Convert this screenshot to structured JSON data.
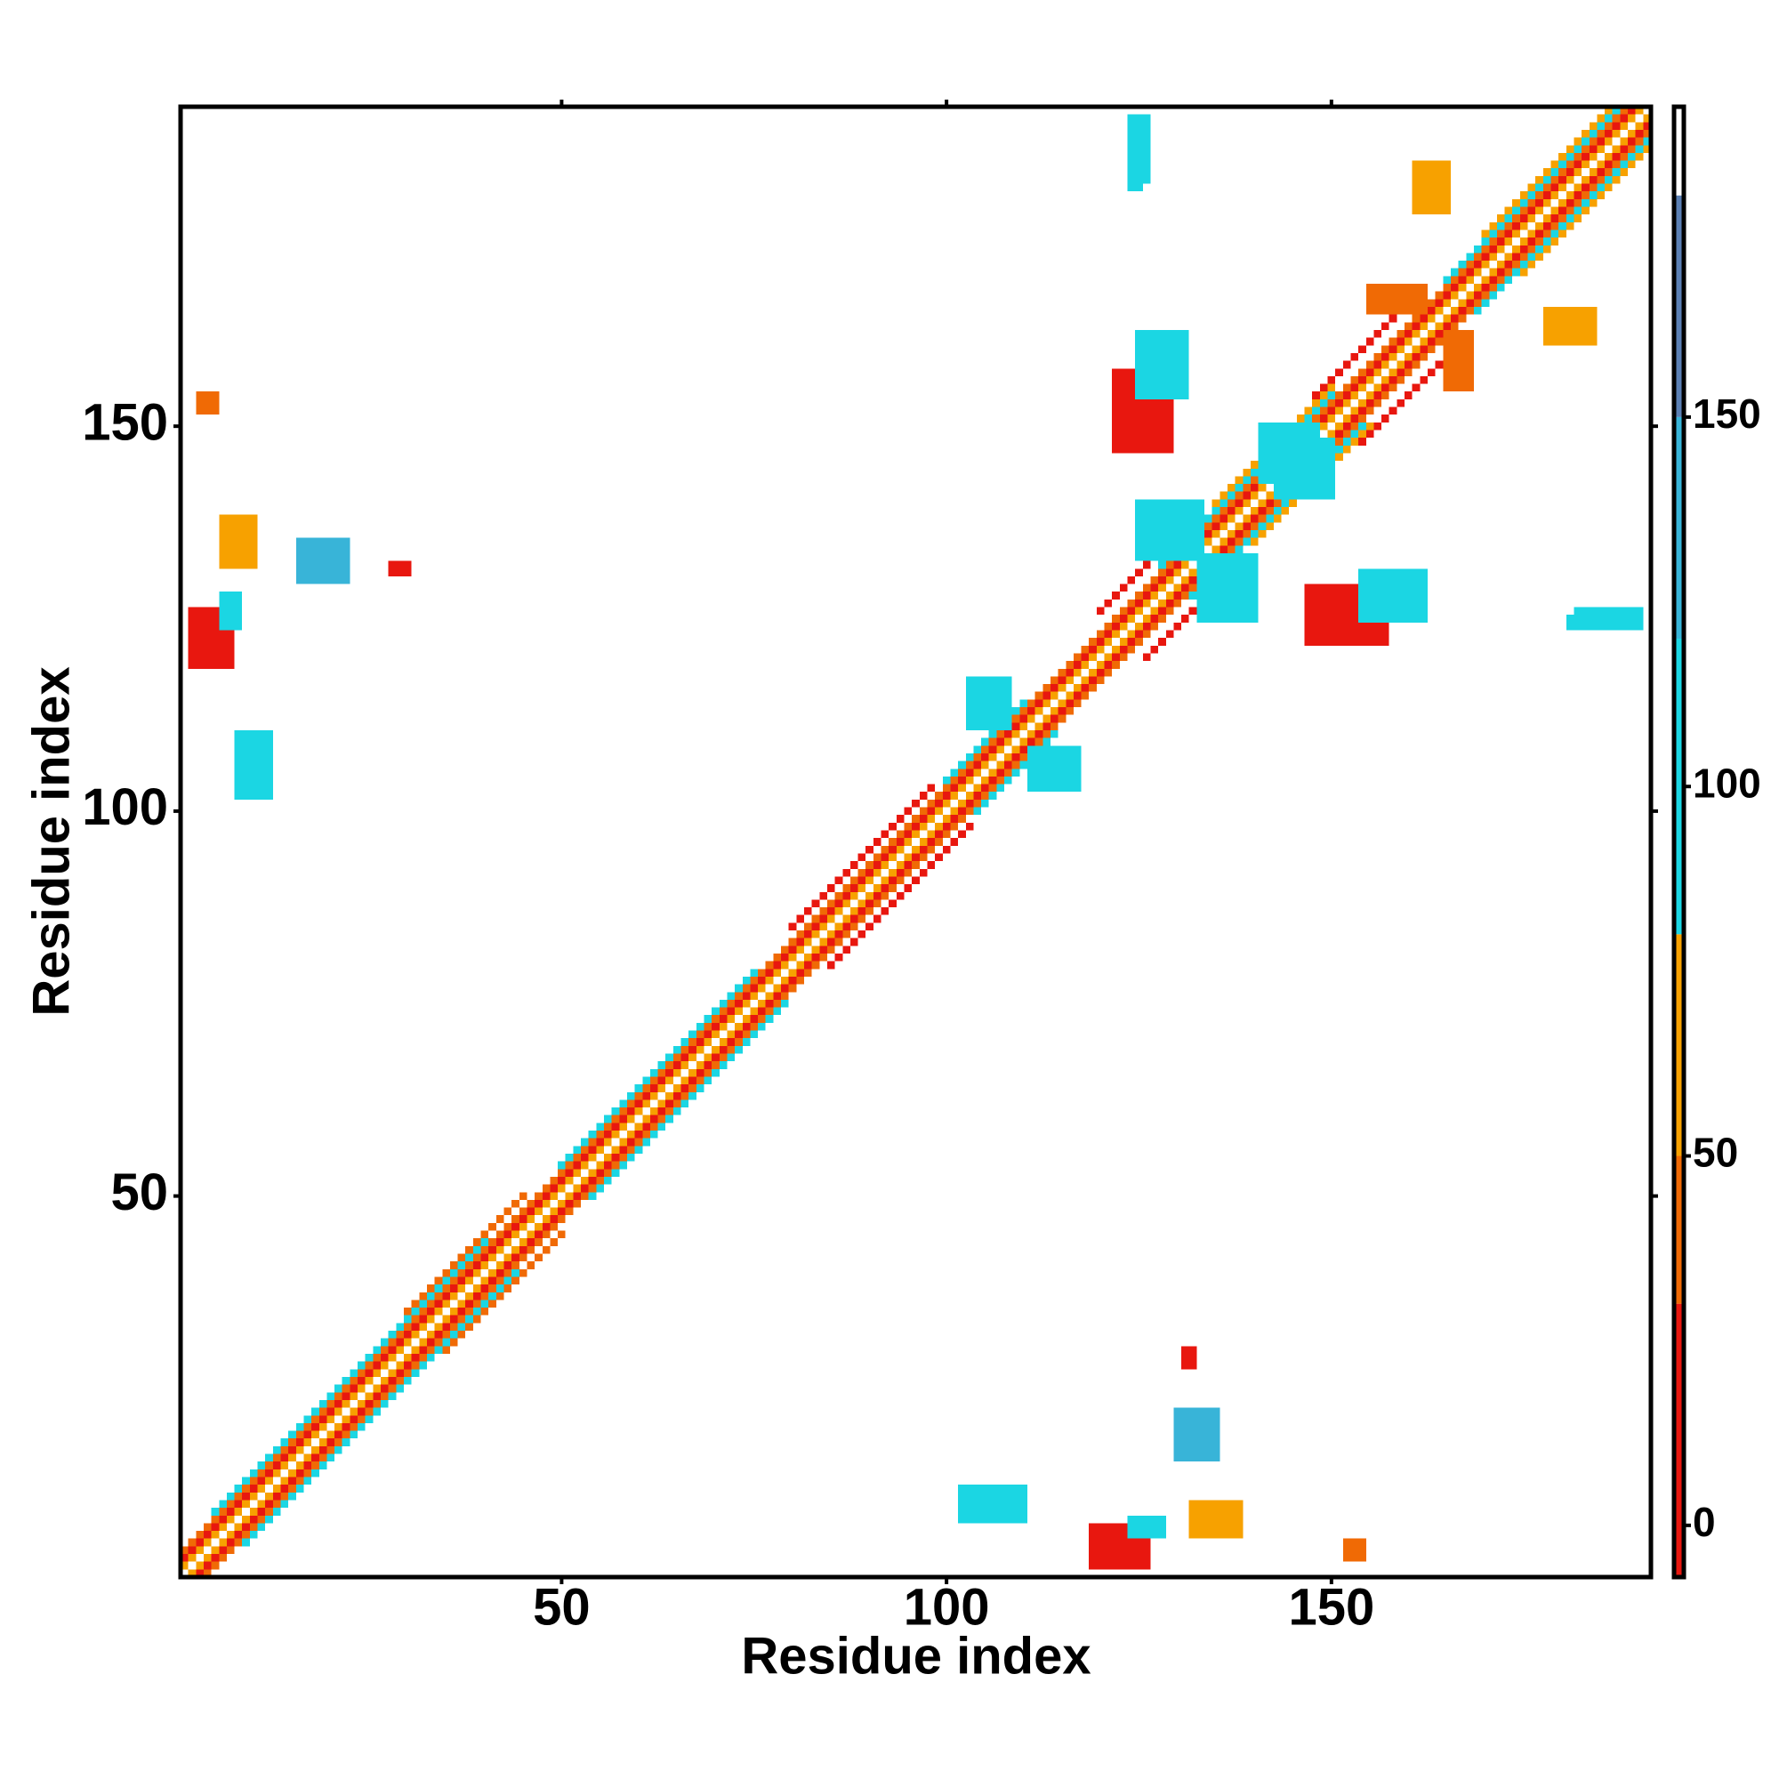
{
  "chart_data": {
    "type": "heatmap",
    "xlabel": "Residue index",
    "ylabel": "Residue index",
    "xlim": [
      0.5,
      191.5
    ],
    "ylim": [
      0.5,
      191.5
    ],
    "xticks": [
      50,
      100,
      150
    ],
    "yticks": [
      50,
      100,
      150
    ],
    "symmetric": true,
    "colorbar": {
      "lim": [
        -7,
        192
      ],
      "ticks": [
        0,
        50,
        100,
        150
      ],
      "bins": [
        -7,
        30,
        50,
        80,
        120,
        150,
        180,
        192
      ],
      "colors": [
        "#e8170f",
        "#f06a05",
        "#f7a100",
        "#1bd6e3",
        "#38b4d8",
        "#5b80b4",
        "#ffffff"
      ]
    },
    "diagonals": [
      {
        "offset": 1,
        "start": 1,
        "end": 190,
        "value": 55
      },
      {
        "offset": 2,
        "start": 1,
        "end": 189,
        "value": 15
      },
      {
        "offset": 3,
        "start": 1,
        "end": 188,
        "value": 40
      },
      {
        "offset": 4,
        "start": 5,
        "end": 40,
        "value": 95
      },
      {
        "offset": 4,
        "start": 50,
        "end": 75,
        "value": 95
      },
      {
        "offset": 4,
        "start": 100,
        "end": 110,
        "value": 100
      },
      {
        "offset": 4,
        "start": 128,
        "end": 150,
        "value": 95
      },
      {
        "offset": 4,
        "start": 165,
        "end": 187,
        "value": 95
      },
      {
        "offset": 5,
        "start": 30,
        "end": 45,
        "value": 35
      },
      {
        "offset": 5,
        "start": 80,
        "end": 98,
        "value": 20
      },
      {
        "offset": 5,
        "start": 135,
        "end": 150,
        "value": 65
      },
      {
        "offset": 5,
        "start": 170,
        "end": 186,
        "value": 65
      },
      {
        "offset": 6,
        "start": 148,
        "end": 158,
        "value": 5
      },
      {
        "offset": 6,
        "start": 120,
        "end": 127,
        "value": 10
      }
    ],
    "blocks": [
      {
        "x": [
          2,
          7
        ],
        "y": [
          119,
          126
        ],
        "value": 8
      },
      {
        "x": [
          6,
          8
        ],
        "y": [
          124,
          128
        ],
        "value": 95
      },
      {
        "x": [
          6,
          10
        ],
        "y": [
          132,
          138
        ],
        "value": 60
      },
      {
        "x": [
          16,
          22
        ],
        "y": [
          130,
          135
        ],
        "value": 130
      },
      {
        "x": [
          8,
          12
        ],
        "y": [
          102,
          110
        ],
        "value": 100
      },
      {
        "x": [
          122,
          129
        ],
        "y": [
          147,
          157
        ],
        "value": 6
      },
      {
        "x": [
          125,
          131
        ],
        "y": [
          154,
          162
        ],
        "value": 95
      },
      {
        "x": [
          133,
          140
        ],
        "y": [
          125,
          133
        ],
        "value": 95
      },
      {
        "x": [
          141,
          148
        ],
        "y": [
          143,
          150
        ],
        "value": 100
      },
      {
        "x": [
          103,
          108
        ],
        "y": [
          111,
          117
        ],
        "value": 100
      },
      {
        "x": [
          165,
          168
        ],
        "y": [
          155,
          162
        ],
        "value": 45
      },
      {
        "x": [
          161,
          165
        ],
        "y": [
          178,
          184
        ],
        "value": 60
      },
      {
        "x": [
          124,
          126
        ],
        "y": [
          182,
          190
        ],
        "value": 95
      },
      {
        "x": [
          181,
          187
        ],
        "y": [
          124,
          125
        ],
        "value": 100
      },
      {
        "x": [
          3,
          5
        ],
        "y": [
          152,
          154
        ],
        "value": 30
      },
      {
        "x": [
          28,
          30
        ],
        "y": [
          131,
          132
        ],
        "value": 20
      }
    ]
  }
}
